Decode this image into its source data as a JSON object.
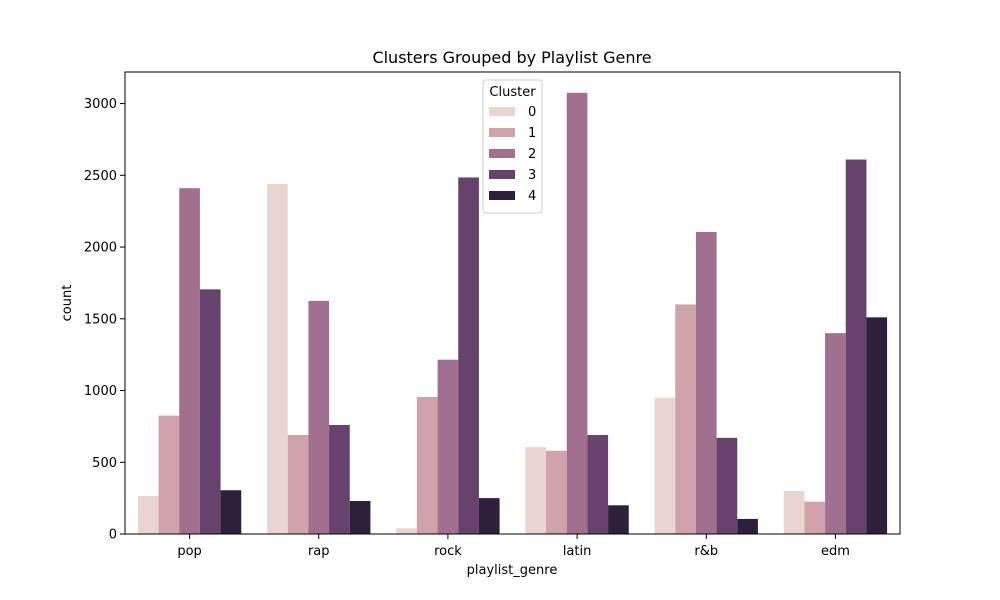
{
  "chart_data": {
    "type": "bar",
    "title": "Clusters Grouped by Playlist Genre",
    "xlabel": "playlist_genre",
    "ylabel": "count",
    "categories": [
      "pop",
      "rap",
      "rock",
      "latin",
      "r&b",
      "edm"
    ],
    "ylim": [
      0,
      3220
    ],
    "yticks": [
      0,
      500,
      1000,
      1500,
      2000,
      2500,
      3000
    ],
    "legend": {
      "title": "Cluster",
      "placement": "top-center"
    },
    "grid": false,
    "series": [
      {
        "name": "0",
        "color": "#ebd5d0",
        "values": [
          265,
          2440,
          40,
          605,
          950,
          300
        ]
      },
      {
        "name": "1",
        "color": "#d0a2ab",
        "values": [
          825,
          690,
          955,
          580,
          1600,
          225
        ]
      },
      {
        "name": "2",
        "color": "#a1708f",
        "values": [
          2410,
          1625,
          1215,
          3075,
          2105,
          1400
        ]
      },
      {
        "name": "3",
        "color": "#67426c",
        "values": [
          1705,
          760,
          2485,
          690,
          670,
          2610
        ]
      },
      {
        "name": "4",
        "color": "#2e1f3b",
        "values": [
          305,
          230,
          250,
          200,
          105,
          1510
        ]
      }
    ]
  }
}
